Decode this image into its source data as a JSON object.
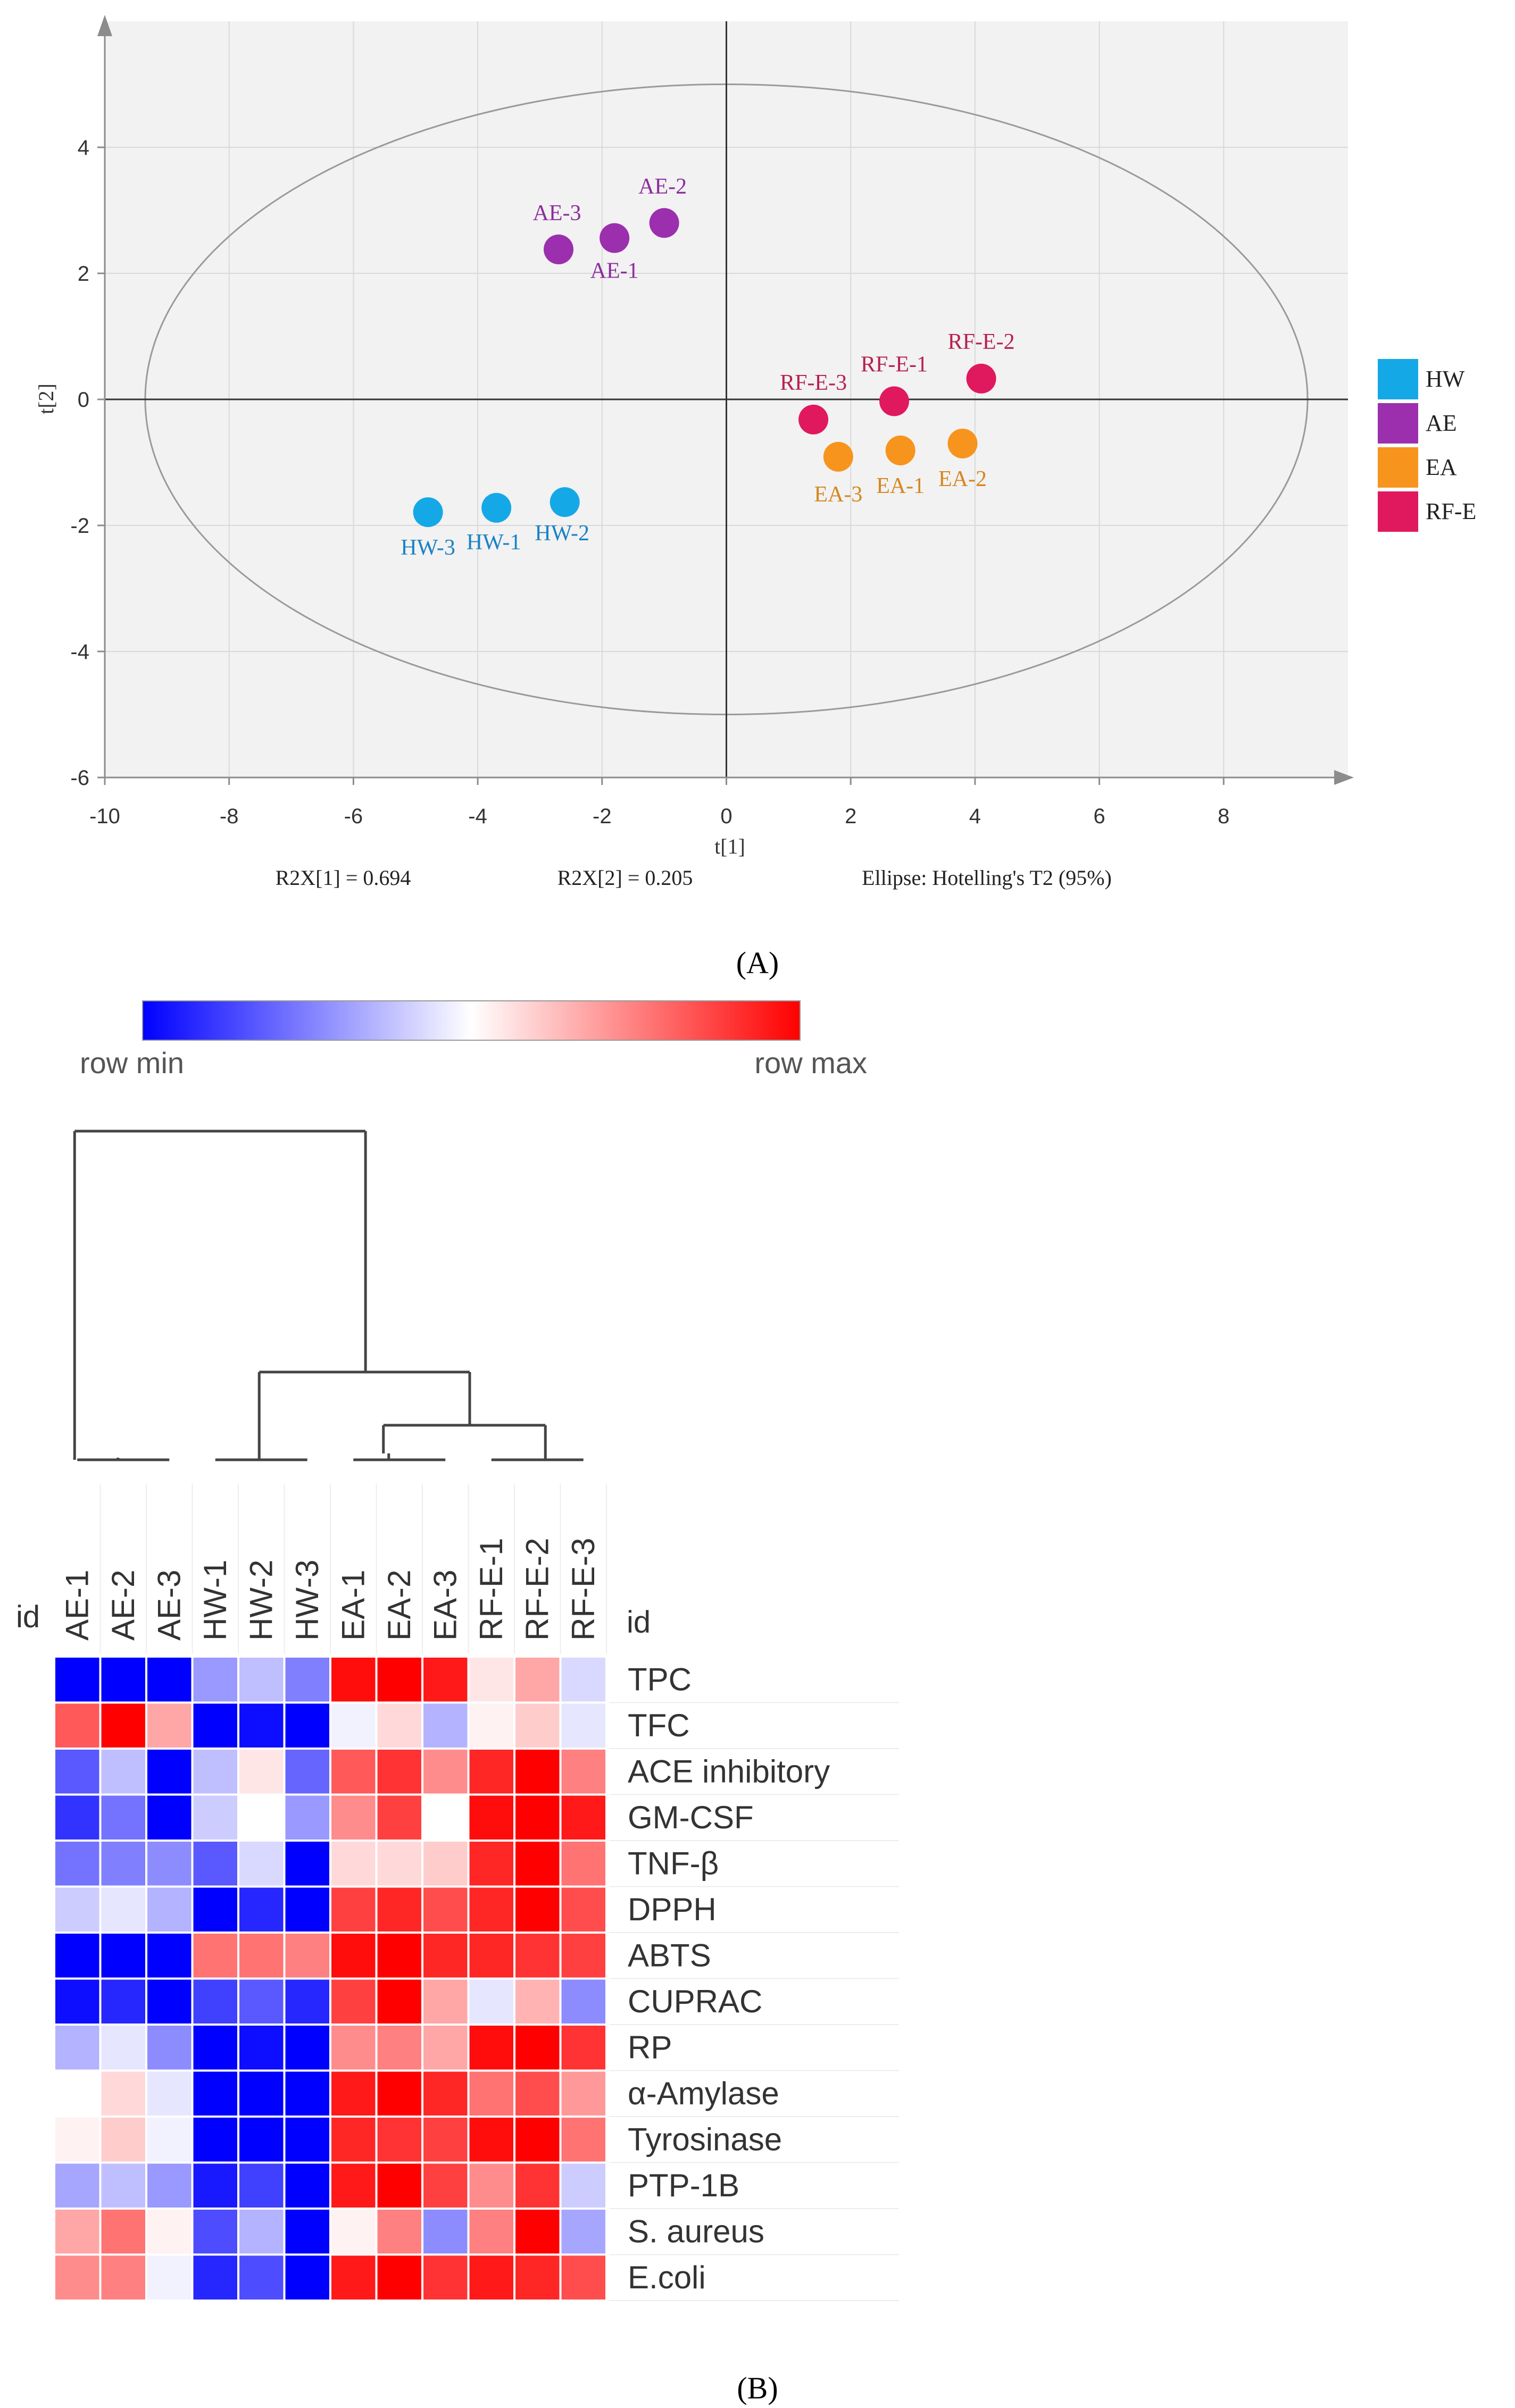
{
  "panel_a": {
    "panel_label": "(A)",
    "chart_data": {
      "type": "scatter",
      "xlabel": "t[1]",
      "ylabel": "t[2]",
      "xlim": [
        -10,
        10
      ],
      "ylim": [
        -6,
        6
      ],
      "xticks": [
        -10,
        -8,
        -6,
        -4,
        -2,
        0,
        2,
        4,
        6,
        8
      ],
      "yticks": [
        -6,
        -4,
        -2,
        0,
        2,
        4
      ],
      "grid": true,
      "legend_position": "right",
      "ellipse": {
        "cx": 0,
        "cy": 0,
        "rx": 9.35,
        "ry": 5.0
      },
      "series": [
        {
          "name": "HW",
          "color": "#15a8e6",
          "label_color": "#1a82c4",
          "points": [
            {
              "label": "HW-1",
              "x": -3.7,
              "y": -1.72
            },
            {
              "label": "HW-2",
              "x": -2.6,
              "y": -1.63
            },
            {
              "label": "HW-3",
              "x": -4.8,
              "y": -1.79
            }
          ]
        },
        {
          "name": "AE",
          "color": "#9b2fae",
          "label_color": "#8e2c9e",
          "points": [
            {
              "label": "AE-1",
              "x": -1.8,
              "y": 2.56
            },
            {
              "label": "AE-2",
              "x": -1.0,
              "y": 2.8
            },
            {
              "label": "AE-3",
              "x": -2.7,
              "y": 2.38
            }
          ]
        },
        {
          "name": "EA",
          "color": "#f7941d",
          "label_color": "#d6861e",
          "points": [
            {
              "label": "EA-1",
              "x": 2.8,
              "y": -0.81
            },
            {
              "label": "EA-2",
              "x": 3.8,
              "y": -0.7
            },
            {
              "label": "EA-3",
              "x": 1.8,
              "y": -0.91
            }
          ]
        },
        {
          "name": "RF-E",
          "color": "#e0195e",
          "label_color": "#b7204f",
          "points": [
            {
              "label": "RF-E-1",
              "x": 2.7,
              "y": -0.03
            },
            {
              "label": "RF-E-2",
              "x": 4.1,
              "y": 0.33
            },
            {
              "label": "RF-E-3",
              "x": 1.4,
              "y": -0.32
            }
          ]
        }
      ],
      "annotations": [
        "R2X[1] = 0.694",
        "R2X[2] = 0.205",
        "Ellipse: Hotelling's T2 (95%)"
      ]
    }
  },
  "panel_b": {
    "panel_label": "(B)",
    "chart_data": {
      "type": "heatmap",
      "colorbar_min_label": "row min",
      "colorbar_max_label": "row max",
      "id_label": "id",
      "columns": [
        "AE-1",
        "AE-2",
        "AE-3",
        "HW-1",
        "HW-2",
        "HW-3",
        "EA-1",
        "EA-2",
        "EA-3",
        "RF-E-1",
        "RF-E-2",
        "RF-E-3"
      ],
      "rows": [
        "TPC",
        "TFC",
        "ACE inhibitory",
        "GM-CSF",
        "TNF-β",
        "DPPH",
        "ABTS",
        "CUPRAC",
        "RP",
        "α-Amylase",
        "Tyrosinase",
        " PTP-1B",
        "S. aureus",
        "E.coli"
      ],
      "values": [
        [
          -1.0,
          -1.0,
          -1.0,
          -0.4,
          -0.25,
          -0.5,
          0.95,
          1.0,
          0.9,
          0.1,
          0.35,
          -0.15
        ],
        [
          0.65,
          1.0,
          0.35,
          -1.0,
          -0.95,
          -1.0,
          -0.05,
          0.15,
          -0.3,
          0.05,
          0.2,
          -0.1
        ],
        [
          -0.65,
          -0.25,
          -1.0,
          -0.25,
          0.1,
          -0.6,
          0.65,
          0.8,
          0.45,
          0.85,
          1.0,
          0.5
        ],
        [
          -0.8,
          -0.55,
          -1.0,
          -0.2,
          0.0,
          -0.4,
          0.45,
          0.75,
          0.0,
          0.95,
          1.0,
          0.9
        ],
        [
          -0.55,
          -0.5,
          -0.45,
          -0.65,
          -0.15,
          -1.0,
          0.15,
          0.15,
          0.2,
          0.85,
          1.0,
          0.55
        ],
        [
          -0.2,
          -0.1,
          -0.3,
          -1.0,
          -0.85,
          -1.0,
          0.75,
          0.85,
          0.7,
          0.85,
          1.0,
          0.7
        ],
        [
          -1.0,
          -1.0,
          -1.0,
          0.55,
          0.55,
          0.5,
          0.95,
          1.0,
          0.85,
          0.85,
          0.8,
          0.75
        ],
        [
          -0.95,
          -0.85,
          -1.0,
          -0.75,
          -0.65,
          -0.85,
          0.75,
          1.0,
          0.35,
          -0.1,
          0.3,
          -0.45
        ],
        [
          -0.3,
          -0.1,
          -0.45,
          -1.0,
          -0.95,
          -1.0,
          0.45,
          0.5,
          0.35,
          0.95,
          1.0,
          0.8
        ],
        [
          0.0,
          0.15,
          -0.1,
          -1.0,
          -1.0,
          -1.0,
          0.9,
          1.0,
          0.85,
          0.55,
          0.7,
          0.4
        ],
        [
          0.05,
          0.2,
          -0.05,
          -1.0,
          -1.0,
          -1.0,
          0.85,
          0.8,
          0.75,
          0.95,
          1.0,
          0.55
        ],
        [
          -0.35,
          -0.25,
          -0.4,
          -0.9,
          -0.75,
          -1.0,
          0.9,
          1.0,
          0.75,
          0.45,
          0.8,
          -0.2
        ],
        [
          0.35,
          0.55,
          0.05,
          -0.7,
          -0.3,
          -1.0,
          0.05,
          0.5,
          -0.45,
          0.5,
          1.0,
          -0.35
        ],
        [
          0.45,
          0.5,
          -0.05,
          -0.85,
          -0.7,
          -1.0,
          0.9,
          1.0,
          0.8,
          0.9,
          0.85,
          0.7
        ]
      ],
      "dendrogram": "Cluster A: AE-1, AE-2, AE-3 | Cluster B: (HW-1, HW-2, HW-3) + ((EA-1, EA-2, EA-3) + (RF-E-1, RF-E-2, RF-E-3))"
    }
  }
}
